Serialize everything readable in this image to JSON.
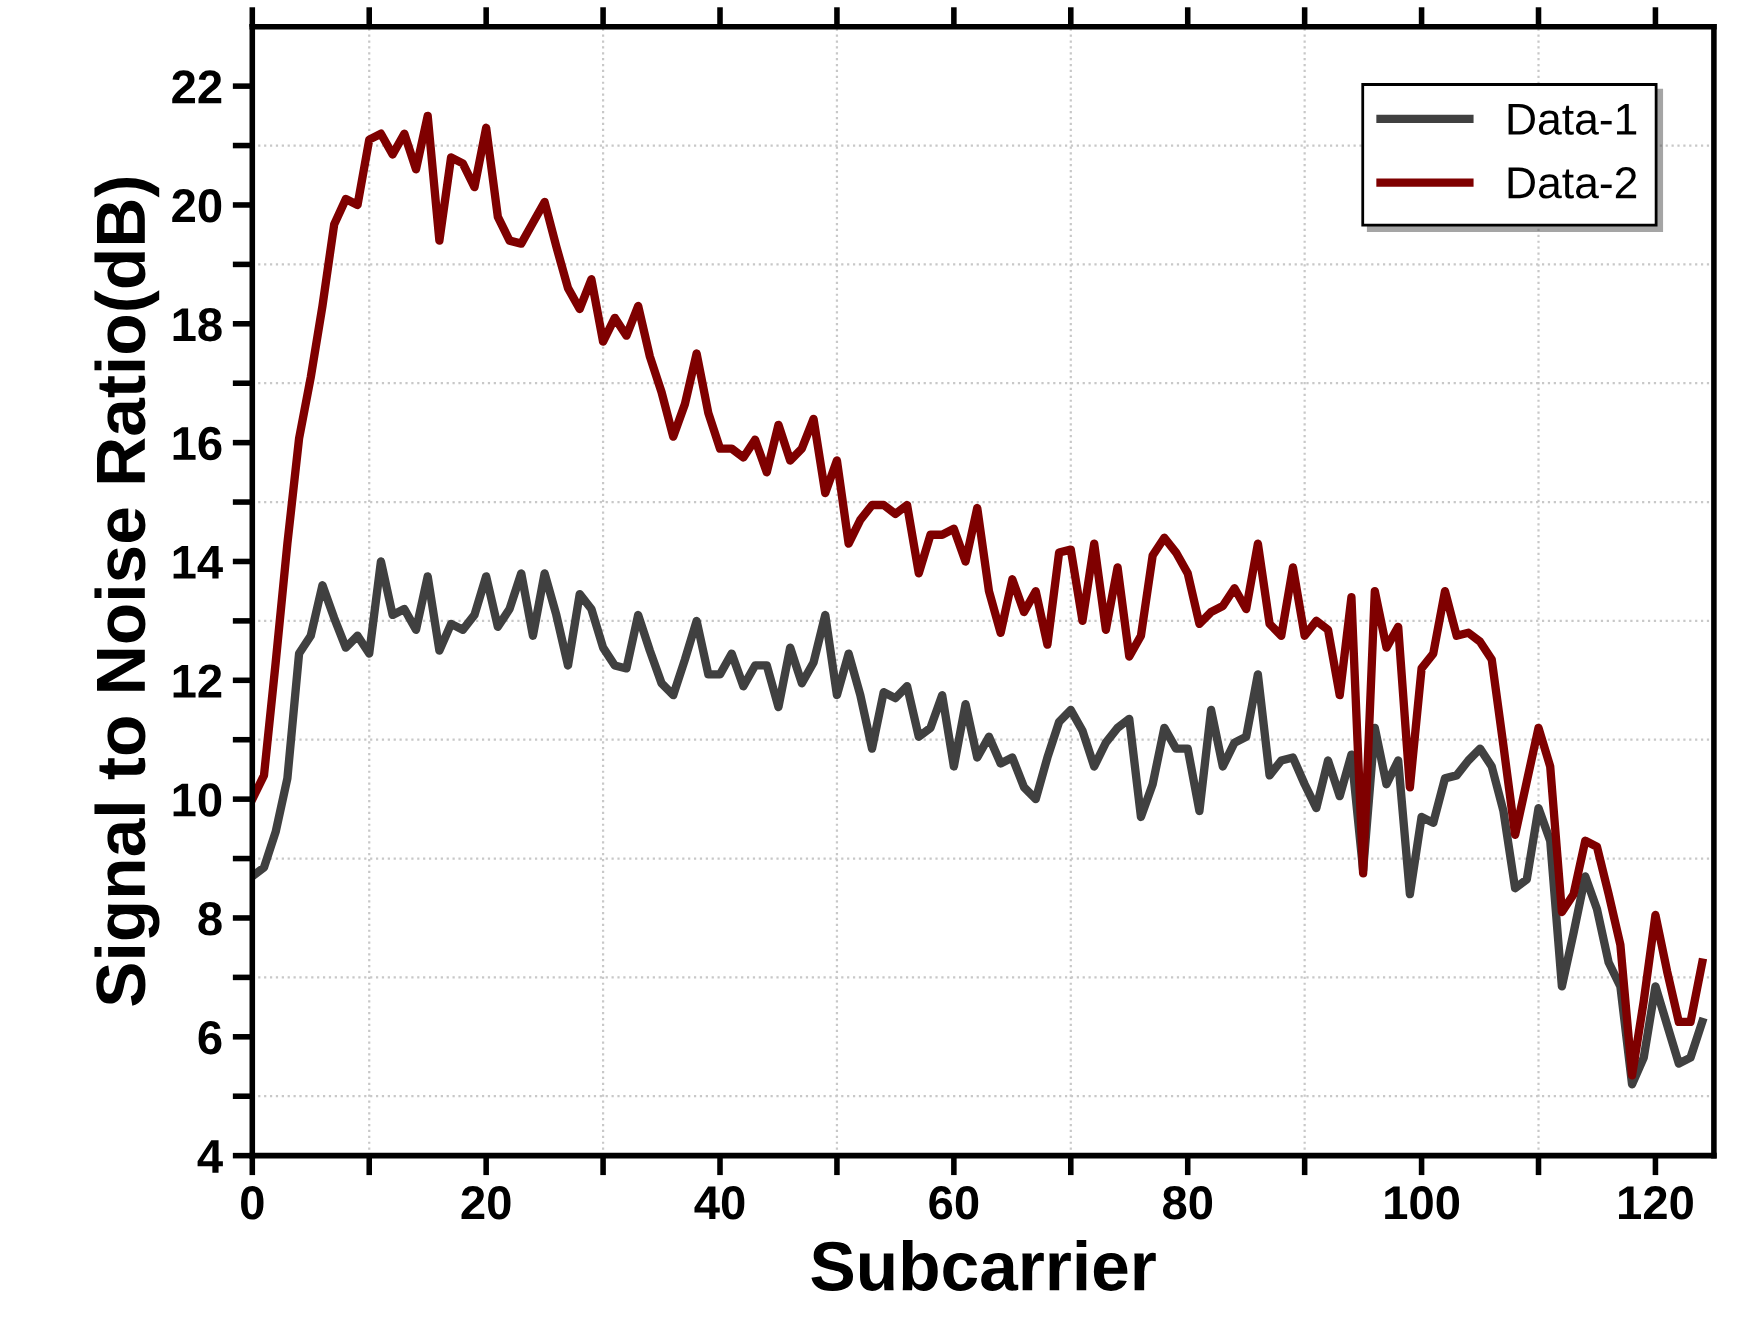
{
  "chart_data": {
    "type": "line",
    "xlabel": "Subcarrier",
    "ylabel": "Signal to Noise Ratio(dB)",
    "x": [
      0,
      1,
      2,
      3,
      4,
      5,
      6,
      7,
      8,
      9,
      10,
      11,
      12,
      13,
      14,
      15,
      16,
      17,
      18,
      19,
      20,
      21,
      22,
      23,
      24,
      25,
      26,
      27,
      28,
      29,
      30,
      31,
      32,
      33,
      34,
      35,
      36,
      37,
      38,
      39,
      40,
      41,
      42,
      43,
      44,
      45,
      46,
      47,
      48,
      49,
      50,
      51,
      52,
      53,
      54,
      55,
      56,
      57,
      58,
      59,
      60,
      61,
      62,
      63,
      64,
      65,
      66,
      67,
      68,
      69,
      70,
      71,
      72,
      73,
      74,
      75,
      76,
      77,
      78,
      79,
      80,
      81,
      82,
      83,
      84,
      85,
      86,
      87,
      88,
      89,
      90,
      91,
      92,
      93,
      94,
      95,
      96,
      97,
      98,
      99,
      100,
      101,
      102,
      103,
      104,
      105,
      106,
      107,
      108,
      109,
      110,
      111,
      112,
      113,
      114,
      115,
      116,
      117,
      118,
      119,
      120,
      121,
      122,
      123,
      124
    ],
    "series": [
      {
        "name": "Data-1",
        "color": "#404040",
        "values": [
          8.7,
          8.85,
          9.45,
          10.35,
          12.45,
          12.75,
          13.6,
          13.05,
          12.55,
          12.75,
          12.45,
          14.0,
          13.1,
          13.2,
          12.85,
          13.75,
          12.5,
          12.95,
          12.85,
          13.1,
          13.75,
          12.9,
          13.2,
          13.8,
          12.75,
          13.8,
          13.1,
          12.25,
          13.45,
          13.2,
          12.55,
          12.25,
          12.2,
          13.1,
          12.5,
          11.95,
          11.75,
          12.35,
          13.0,
          12.1,
          12.1,
          12.45,
          11.9,
          12.25,
          12.25,
          11.55,
          12.55,
          11.95,
          12.3,
          13.1,
          11.75,
          12.45,
          11.75,
          10.85,
          11.8,
          11.7,
          11.9,
          11.05,
          11.2,
          11.75,
          10.55,
          11.6,
          10.7,
          11.05,
          10.6,
          10.7,
          10.2,
          10.0,
          10.7,
          11.3,
          11.5,
          11.15,
          10.55,
          10.95,
          11.2,
          11.35,
          9.7,
          10.25,
          11.2,
          10.85,
          10.85,
          9.8,
          11.5,
          10.55,
          10.95,
          11.05,
          12.1,
          10.4,
          10.65,
          10.7,
          10.25,
          9.85,
          10.65,
          10.05,
          10.75,
          8.8,
          11.2,
          10.25,
          10.65,
          8.4,
          9.7,
          9.6,
          10.35,
          10.4,
          10.65,
          10.85,
          10.55,
          9.8,
          8.5,
          8.65,
          9.85,
          9.3,
          6.85,
          7.75,
          8.7,
          8.15,
          7.25,
          6.85,
          5.2,
          5.65,
          6.85,
          6.2,
          5.55,
          5.65,
          6.25
        ]
      },
      {
        "name": "Data-2",
        "color": "#7f0000",
        "values": [
          10.0,
          10.4,
          12.3,
          14.3,
          16.07,
          17.1,
          18.3,
          19.67,
          20.1,
          20.0,
          21.1,
          21.2,
          20.85,
          21.2,
          20.6,
          21.5,
          19.4,
          20.8,
          20.7,
          20.3,
          21.3,
          19.8,
          19.4,
          19.35,
          19.7,
          20.05,
          19.3,
          18.6,
          18.25,
          18.75,
          17.7,
          18.1,
          17.8,
          18.3,
          17.45,
          16.85,
          16.1,
          16.65,
          17.5,
          16.5,
          15.9,
          15.9,
          15.75,
          16.05,
          15.5,
          16.3,
          15.7,
          15.9,
          16.4,
          15.15,
          15.7,
          14.3,
          14.7,
          14.95,
          14.95,
          14.8,
          14.95,
          13.8,
          14.45,
          14.45,
          14.55,
          14.0,
          14.9,
          13.5,
          12.8,
          13.7,
          13.15,
          13.5,
          12.6,
          14.15,
          14.2,
          13.0,
          14.3,
          12.85,
          13.9,
          12.4,
          12.75,
          14.1,
          14.4,
          14.15,
          13.8,
          12.95,
          13.15,
          13.25,
          13.55,
          13.2,
          14.3,
          12.95,
          12.75,
          13.9,
          12.75,
          13.0,
          12.85,
          11.75,
          13.4,
          8.75,
          13.5,
          12.55,
          12.9,
          10.2,
          12.2,
          12.45,
          13.5,
          12.75,
          12.8,
          12.65,
          12.35,
          10.9,
          9.4,
          10.3,
          11.2,
          10.55,
          8.1,
          8.4,
          9.3,
          9.2,
          8.4,
          7.55,
          5.35,
          6.6,
          8.05,
          7.1,
          6.25,
          6.25,
          7.25
        ]
      }
    ],
    "xlim": [
      0,
      125
    ],
    "ylim": [
      4,
      23
    ],
    "xticks": [
      0,
      {
        "value": 10,
        "label": null
      },
      20,
      {
        "value": 30,
        "label": null
      },
      40,
      {
        "value": 50,
        "label": null
      },
      60,
      {
        "value": 70,
        "label": null
      },
      80,
      {
        "value": 90,
        "label": null
      },
      100,
      {
        "value": 110,
        "label": null
      },
      120
    ],
    "yticks": [
      4,
      {
        "value": 5,
        "label": null
      },
      6,
      {
        "value": 7,
        "label": null
      },
      8,
      {
        "value": 9,
        "label": null
      },
      10,
      {
        "value": 11,
        "label": null
      },
      12,
      {
        "value": 13,
        "label": null
      },
      14,
      {
        "value": 15,
        "label": null
      },
      16,
      {
        "value": 17,
        "label": null
      },
      18,
      {
        "value": 19,
        "label": null
      },
      20,
      {
        "value": 21,
        "label": null
      },
      22
    ],
    "grid": true,
    "legend": "top right",
    "marker": "none",
    "line_style": "solid"
  }
}
